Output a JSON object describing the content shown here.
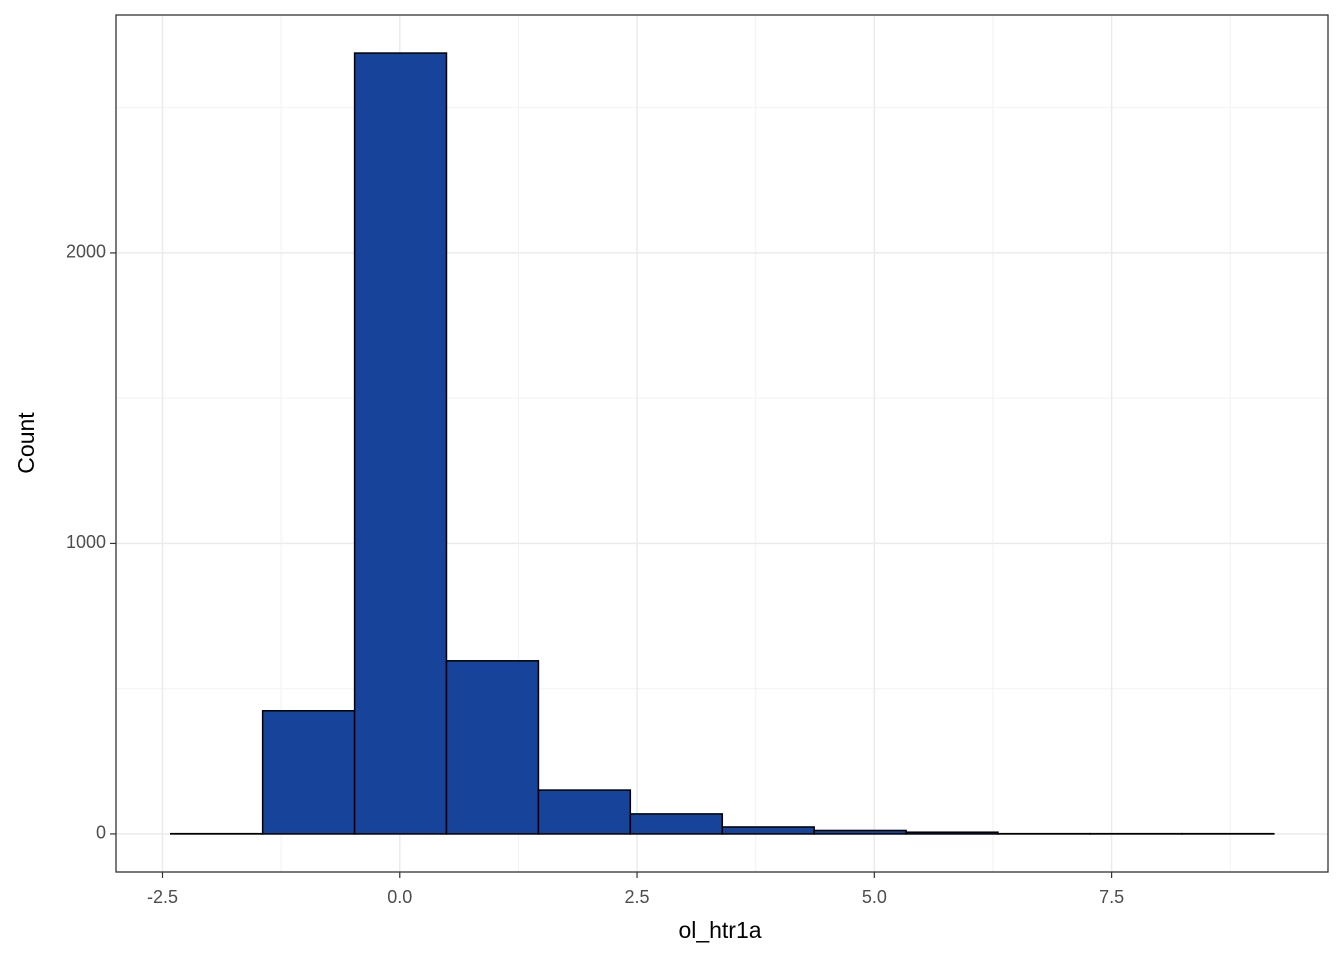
{
  "chart_data": {
    "type": "histogram",
    "x_label": "ol_htr1a",
    "y_label": "Count",
    "bins": [
      -2.413,
      -1.445,
      -0.476,
      0.492,
      1.461,
      2.429,
      3.398,
      4.366,
      5.335,
      6.303,
      7.272,
      8.24,
      9.209
    ],
    "values": [
      1,
      424,
      2688,
      596,
      151,
      69,
      24,
      12,
      6,
      1,
      1,
      1
    ],
    "color": "#18439a",
    "edge_color": "#000000",
    "xlim": [
      -2.99,
      9.78
    ],
    "xticks": [
      -2.5,
      {
        "value": 0,
        "label": "0.0"
      },
      2.5,
      {
        "value": 5,
        "label": "5.0"
      },
      7.5
    ],
    "ylim": [
      -131,
      2819
    ],
    "yticks": [
      0,
      1000,
      2000
    ],
    "grid": true,
    "minor_grid": true
  }
}
